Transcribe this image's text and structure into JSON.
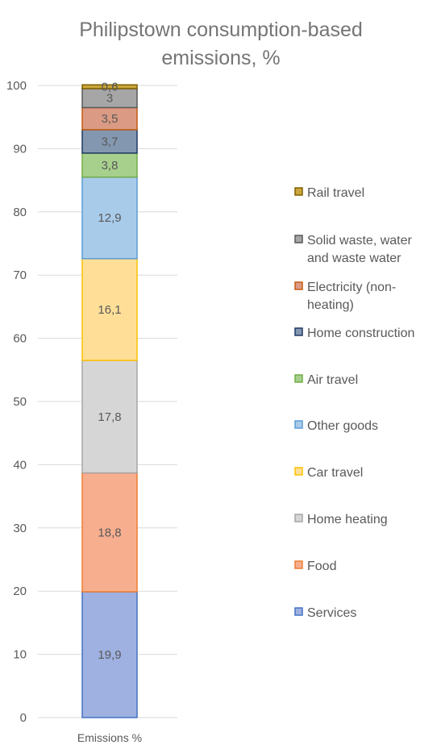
{
  "chart_data": {
    "type": "bar",
    "stacked": true,
    "title_lines": [
      "Philipstown consumption-based",
      "emissions, %"
    ],
    "categories": [
      "Emissions %"
    ],
    "ylim": [
      0,
      100
    ],
    "yticks": [
      0,
      10,
      20,
      30,
      40,
      50,
      60,
      70,
      80,
      90,
      100
    ],
    "grid": true,
    "legend_position": "right",
    "series": [
      {
        "name": "Services",
        "value": 19.9,
        "label": "19,9",
        "fill": "#9FB1E0",
        "stroke": "#4472C4"
      },
      {
        "name": "Food",
        "value": 18.8,
        "label": "18,8",
        "fill": "#F7AE8F",
        "stroke": "#ED7D31"
      },
      {
        "name": "Home heating",
        "value": 17.8,
        "label": "17,8",
        "fill": "#D6D6D6",
        "stroke": "#A5A5A5"
      },
      {
        "name": "Car travel",
        "value": 16.1,
        "label": "16,1",
        "fill": "#FFDF97",
        "stroke": "#FFC000"
      },
      {
        "name": "Other goods",
        "value": 12.9,
        "label": "12,9",
        "fill": "#A9CBEA",
        "stroke": "#5B9BD5"
      },
      {
        "name": "Air travel",
        "value": 3.8,
        "label": "3,8",
        "fill": "#A8D08D",
        "stroke": "#70AD47"
      },
      {
        "name": "Home construction",
        "value": 3.7,
        "label": "3,7",
        "fill": "#8497B0",
        "stroke": "#1F3864"
      },
      {
        "name": "Electricity (non-heating)",
        "value": 3.5,
        "label": "3,5",
        "fill": "#DB9A83",
        "stroke": "#C55A11"
      },
      {
        "name": "Solid waste, water and waste water",
        "value": 3,
        "label": "3",
        "fill": "#A6A6A6",
        "stroke": "#595959"
      },
      {
        "name": "Rail travel",
        "value": 0.6,
        "label": "0,6",
        "fill": "#C9A53B",
        "stroke": "#806000"
      }
    ],
    "legend_lines": [
      [
        "Rail travel"
      ],
      [
        "Solid waste, water",
        "and waste water"
      ],
      [
        "Electricity (non-",
        "heating)"
      ],
      [
        "Home construction"
      ],
      [
        "Air travel"
      ],
      [
        "Other goods"
      ],
      [
        "Car travel"
      ],
      [
        "Home heating"
      ],
      [
        "Food"
      ],
      [
        "Services"
      ]
    ]
  }
}
